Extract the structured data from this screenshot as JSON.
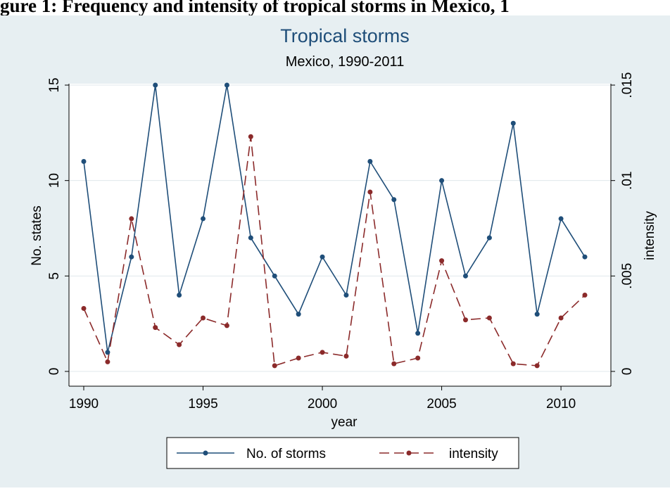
{
  "page_heading": "gure 1: Frequency and intensity of tropical storms in Mexico, 1",
  "colors": {
    "outer_bg": "#e7eff2",
    "plot_bg": "#ffffff",
    "grid": "#e0e8ec",
    "storms": "#1f4e79",
    "intensity": "#8b2a2a",
    "text": "#000000",
    "title": "#1f4e79"
  },
  "chart_data": {
    "type": "line",
    "title": "Tropical storms",
    "subtitle": "Mexico, 1990-2011",
    "xlabel": "year",
    "ylabel": "No. states",
    "y2label": "intensity",
    "x": [
      1990,
      1991,
      1992,
      1993,
      1994,
      1995,
      1996,
      1997,
      1998,
      1999,
      2000,
      2001,
      2002,
      2003,
      2004,
      2005,
      2006,
      2007,
      2008,
      2009,
      2010,
      2011
    ],
    "xlim": [
      1990,
      2011
    ],
    "xticks": [
      "1990",
      "1995",
      "2000",
      "2005",
      "2010"
    ],
    "ylim": [
      0,
      15
    ],
    "yticks": [
      "0",
      "5",
      "10",
      "15"
    ],
    "y2lim": [
      0,
      0.015
    ],
    "y2ticks": [
      "0",
      ".005",
      ".01",
      ".015"
    ],
    "grid": true,
    "legend_position": "bottom",
    "series": [
      {
        "name": "No. of storms",
        "axis": "left",
        "style": "solid",
        "values": [
          11,
          1,
          6,
          15,
          4,
          8,
          15,
          7,
          5,
          3,
          6,
          4,
          11,
          9,
          2,
          10,
          5,
          7,
          13,
          3,
          8,
          6
        ]
      },
      {
        "name": "intensity",
        "axis": "right",
        "style": "dashed",
        "values": [
          0.0033,
          0.0005,
          0.008,
          0.0023,
          0.0014,
          0.0028,
          0.0024,
          0.0123,
          0.0003,
          0.0007,
          0.001,
          0.0008,
          0.0094,
          0.0004,
          0.0007,
          0.0058,
          0.0027,
          0.0028,
          0.0004,
          0.0003,
          0.0028,
          0.004
        ]
      }
    ]
  }
}
